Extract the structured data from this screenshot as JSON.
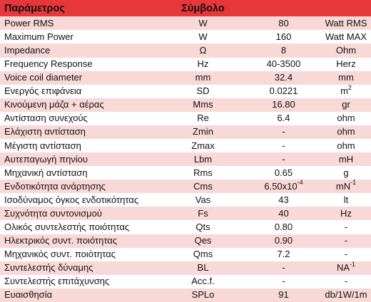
{
  "header": {
    "parameter": "Παράμετρος",
    "symbol": "Σύμβολο",
    "value": "",
    "unit": ""
  },
  "rows": [
    {
      "parameter": "Power RMS",
      "symbol": "W",
      "value": "80",
      "unit": "Watt RMS",
      "unit_sup": ""
    },
    {
      "parameter": "Maximum Power",
      "symbol": "W",
      "value": "160",
      "unit": "Watt MAX",
      "unit_sup": ""
    },
    {
      "parameter": "Impedance",
      "symbol": "Ω",
      "value": "8",
      "unit": "Ohm",
      "unit_sup": ""
    },
    {
      "parameter": "Frequency Response",
      "symbol": "Hz",
      "value": "40-3500",
      "unit": "Herz",
      "unit_sup": ""
    },
    {
      "parameter": "Voice coil diameter",
      "symbol": "mm",
      "value": "32.4",
      "unit": "mm",
      "unit_sup": ""
    },
    {
      "parameter": "Ενεργός επιφάνεια",
      "symbol": "SD",
      "value": "0.0221",
      "unit": "m",
      "unit_sup": "2"
    },
    {
      "parameter": "Κινούμενη μάζα + αέρας",
      "symbol": "Mms",
      "value": "16.80",
      "unit": "gr",
      "unit_sup": ""
    },
    {
      "parameter": "Αντίσταση συνεχούς",
      "symbol": "Re",
      "value": "6.4",
      "unit": "ohm",
      "unit_sup": ""
    },
    {
      "parameter": "Ελάχιστη αντίσταση",
      "symbol": "Zmin",
      "value": "-",
      "unit": "ohm",
      "unit_sup": ""
    },
    {
      "parameter": "Μέγιστη αντίσταση",
      "symbol": "Zmax",
      "value": "-",
      "unit": "ohm",
      "unit_sup": ""
    },
    {
      "parameter": "Αυτεπαγωγή πηνίου",
      "symbol": "Lbm",
      "value": "-",
      "unit": "mH",
      "unit_sup": ""
    },
    {
      "parameter": "Μηχανική αντίσταση",
      "symbol": "Rms",
      "value": "0.65",
      "unit": "g",
      "unit_sup": ""
    },
    {
      "parameter": "Ενδοτικότητα ανάρτησης",
      "symbol": "Cms",
      "value": "6.50x10",
      "value_sup": "-4",
      "unit": "mN",
      "unit_sup": "-1"
    },
    {
      "parameter": "Ισοδύναμος όγκος ενδοτικότητας",
      "symbol": "Vas",
      "value": "43",
      "unit": "lt",
      "unit_sup": ""
    },
    {
      "parameter": "Συχνότητα συντονισμού",
      "symbol": "Fs",
      "value": "40",
      "unit": "Hz",
      "unit_sup": ""
    },
    {
      "parameter": "Ολικός συντελεστής ποιότητας",
      "symbol": "Qts",
      "value": "0.80",
      "unit": "-",
      "unit_sup": ""
    },
    {
      "parameter": "Ηλεκτρικός συντ. ποιότητας",
      "symbol": "Qes",
      "value": "0.90",
      "unit": "-",
      "unit_sup": ""
    },
    {
      "parameter": "Μηχανικός συντ. ποιότητας",
      "symbol": "Qms",
      "value": "7.2",
      "unit": "-",
      "unit_sup": ""
    },
    {
      "parameter": "Συντελεστής δύναμης",
      "symbol": "BL",
      "value": "-",
      "unit": "NA",
      "unit_sup": "-1"
    },
    {
      "parameter": "Συντελεστής επιτάχυνσης",
      "symbol": "Acc.f.",
      "value": "-",
      "unit": "-",
      "unit_sup": ""
    },
    {
      "parameter": "Ευαισθησία",
      "symbol": "SPLo",
      "value": "91",
      "unit": "db/1W/1m",
      "unit_sup": ""
    }
  ],
  "colors": {
    "header_bg": "#e8373a",
    "stripe_bg": "#f8d9d8",
    "row_bg": "#ffffff"
  }
}
